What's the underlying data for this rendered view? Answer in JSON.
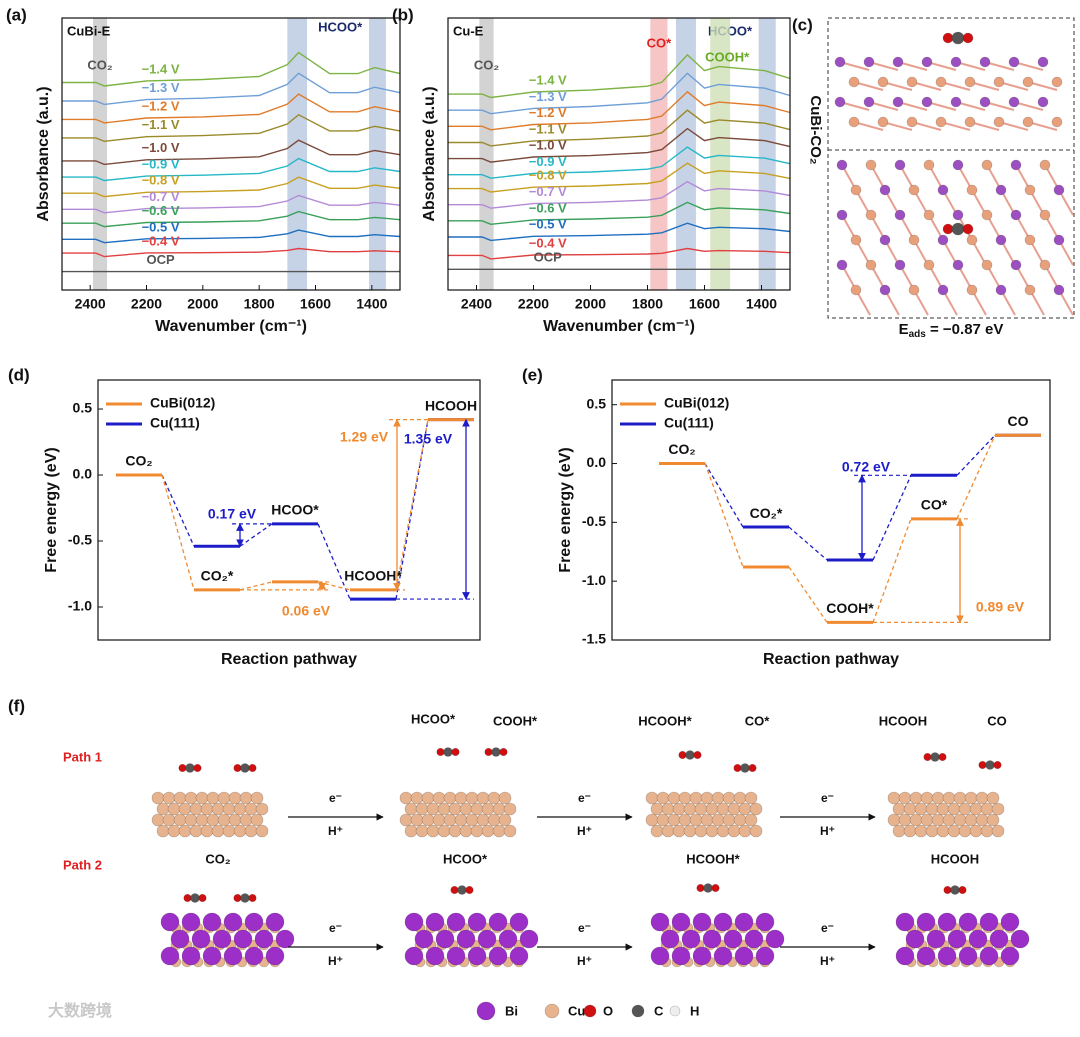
{
  "chart_data": [
    {
      "type": "line",
      "tag": "(a)",
      "label": "CuBi-E",
      "xlabel": "Wavenumber (cm⁻¹)",
      "ylabel": "Absorbance (a.u.)",
      "x": [
        2500,
        2380,
        2350,
        2200,
        2000,
        1800,
        1700,
        1660,
        1550,
        1450,
        1390,
        1300
      ],
      "xlim": [
        2500,
        1300
      ],
      "ylim": [
        0,
        11.8
      ],
      "xticks": [
        2400,
        2200,
        2000,
        1800,
        1600,
        1400
      ],
      "bands": [
        {
          "from": 2390,
          "to": 2340,
          "color": "#c8c8c8",
          "label": "CO₂",
          "label_color": "#555555"
        },
        {
          "from": 1700,
          "to": 1630,
          "color": "#b8c8e0",
          "label": "HCOO*",
          "label_color": "#1a2a6a"
        },
        {
          "from": 1410,
          "to": 1350,
          "color": "#b8c8e0"
        }
      ],
      "series": [
        {
          "name": "−1.4 V",
          "color": "#7cb342",
          "values": [
            9.0,
            9.0,
            8.85,
            9.07,
            9.13,
            9.26,
            9.78,
            10.3,
            9.39,
            9.39,
            9.65,
            9.39
          ]
        },
        {
          "name": "−1.3 V",
          "color": "#6f9fd8",
          "values": [
            8.2,
            8.2,
            8.05,
            8.26,
            8.32,
            8.44,
            8.92,
            9.4,
            8.56,
            8.56,
            8.8,
            8.56
          ]
        },
        {
          "name": "−1.2 V",
          "color": "#e07b2a",
          "values": [
            7.4,
            7.4,
            7.25,
            7.46,
            7.51,
            7.62,
            8.06,
            8.5,
            7.73,
            7.73,
            7.95,
            7.73
          ]
        },
        {
          "name": "−1.1 V",
          "color": "#9a8a2a",
          "values": [
            6.6,
            6.6,
            6.45,
            6.65,
            6.7,
            6.8,
            7.2,
            7.6,
            6.9,
            6.9,
            7.1,
            6.9
          ]
        },
        {
          "name": "−1.0 V",
          "color": "#7b4a3a",
          "values": [
            5.6,
            5.6,
            5.45,
            5.65,
            5.69,
            5.78,
            6.14,
            6.5,
            5.87,
            5.87,
            6.05,
            5.87
          ]
        },
        {
          "name": "−0.9 V",
          "color": "#26b8c8",
          "values": [
            4.9,
            4.9,
            4.75,
            4.94,
            4.98,
            5.06,
            5.38,
            5.7,
            5.14,
            5.14,
            5.3,
            5.14
          ]
        },
        {
          "name": "−0.8 V",
          "color": "#c8a020",
          "values": [
            4.2,
            4.2,
            4.05,
            4.24,
            4.27,
            4.34,
            4.62,
            4.9,
            4.41,
            4.41,
            4.55,
            4.41
          ]
        },
        {
          "name": "−0.7 V",
          "color": "#b48ad8",
          "values": [
            3.5,
            3.5,
            3.35,
            3.53,
            3.56,
            3.62,
            3.86,
            4.1,
            3.68,
            3.68,
            3.8,
            3.68
          ]
        },
        {
          "name": "−0.6 V",
          "color": "#3aa05a",
          "values": [
            2.9,
            2.9,
            2.75,
            2.93,
            2.95,
            3.0,
            3.2,
            3.4,
            3.05,
            3.05,
            3.15,
            3.05
          ]
        },
        {
          "name": "−0.5 V",
          "color": "#1f6fc0",
          "values": [
            2.2,
            2.2,
            2.05,
            2.22,
            2.24,
            2.28,
            2.44,
            2.6,
            2.32,
            2.32,
            2.4,
            2.32
          ]
        },
        {
          "name": "−0.4 V",
          "color": "#e04040",
          "values": [
            1.6,
            1.6,
            1.45,
            1.61,
            1.62,
            1.64,
            1.72,
            1.8,
            1.66,
            1.66,
            1.7,
            1.66
          ]
        },
        {
          "name": "OCP",
          "color": "#555555",
          "values": [
            0.8,
            0.8,
            0.8,
            0.8,
            0.8,
            0.8,
            0.8,
            0.8,
            0.8,
            0.8,
            0.8,
            0.8
          ]
        }
      ]
    },
    {
      "type": "line",
      "tag": "(b)",
      "label": "Cu-E",
      "xlabel": "Wavenumber (cm⁻¹)",
      "ylabel": "Absorbance (a.u.)",
      "x": [
        2500,
        2380,
        2350,
        2200,
        2000,
        1800,
        1750,
        1660,
        1600,
        1550,
        1390,
        1300
      ],
      "xlim": [
        2500,
        1300
      ],
      "ylim": [
        0,
        11.8
      ],
      "xticks": [
        2400,
        2200,
        2000,
        1800,
        1600,
        1400
      ],
      "bands": [
        {
          "from": 2390,
          "to": 2340,
          "color": "#c8c8c8",
          "label": "CO₂",
          "label_color": "#555555"
        },
        {
          "from": 1790,
          "to": 1730,
          "color": "#f4b8b8",
          "label": "CO*",
          "label_color": "#e02020"
        },
        {
          "from": 1700,
          "to": 1630,
          "color": "#b8c8e0",
          "label": "HCOO*",
          "label_color": "#1a2a6a"
        },
        {
          "from": 1580,
          "to": 1510,
          "color": "#cfe0b8",
          "label": "COOH*",
          "label_color": "#66aa22"
        },
        {
          "from": 1410,
          "to": 1350,
          "color": "#b8c8e0"
        }
      ],
      "series": [
        {
          "name": "−1.4 V",
          "color": "#7cb342",
          "values": [
            8.5,
            8.5,
            8.35,
            8.59,
            8.67,
            8.84,
            9.01,
            10.2,
            9.52,
            9.69,
            9.52,
            9.18
          ]
        },
        {
          "name": "−1.3 V",
          "color": "#6f9fd8",
          "values": [
            7.8,
            7.8,
            7.65,
            7.88,
            7.96,
            8.12,
            8.28,
            9.4,
            8.76,
            8.92,
            8.76,
            8.44
          ]
        },
        {
          "name": "−1.2 V",
          "color": "#e07b2a",
          "values": [
            7.1,
            7.1,
            6.95,
            7.18,
            7.25,
            7.4,
            7.55,
            8.6,
            8.0,
            8.15,
            8.0,
            7.7
          ]
        },
        {
          "name": "−1.1 V",
          "color": "#9a8a2a",
          "values": [
            6.4,
            6.4,
            6.25,
            6.47,
            6.54,
            6.68,
            6.82,
            7.8,
            7.24,
            7.38,
            7.24,
            6.96
          ]
        },
        {
          "name": "−1.0 V",
          "color": "#7b4a3a",
          "values": [
            5.7,
            5.7,
            5.55,
            5.77,
            5.83,
            5.96,
            6.09,
            7.0,
            6.48,
            6.61,
            6.48,
            6.22
          ]
        },
        {
          "name": "−0.9 V",
          "color": "#26b8c8",
          "values": [
            5.0,
            5.0,
            4.85,
            5.06,
            5.12,
            5.24,
            5.36,
            6.2,
            5.72,
            5.84,
            5.72,
            5.48
          ]
        },
        {
          "name": "−0.8 V",
          "color": "#c8a020",
          "values": [
            4.4,
            4.4,
            4.25,
            4.46,
            4.51,
            4.62,
            4.73,
            5.5,
            5.06,
            5.17,
            5.06,
            4.84
          ]
        },
        {
          "name": "−0.7 V",
          "color": "#b48ad8",
          "values": [
            3.7,
            3.7,
            3.55,
            3.75,
            3.8,
            3.9,
            4.0,
            4.7,
            4.3,
            4.4,
            4.3,
            4.1
          ]
        },
        {
          "name": "−0.6 V",
          "color": "#3aa05a",
          "values": [
            3.0,
            3.0,
            2.85,
            3.04,
            3.08,
            3.16,
            3.24,
            3.8,
            3.48,
            3.56,
            3.48,
            3.32
          ]
        },
        {
          "name": "−0.5 V",
          "color": "#1f6fc0",
          "values": [
            2.3,
            2.3,
            2.15,
            2.33,
            2.36,
            2.42,
            2.48,
            2.9,
            2.66,
            2.72,
            2.66,
            2.54
          ]
        },
        {
          "name": "−0.4 V",
          "color": "#e04040",
          "values": [
            1.5,
            1.5,
            1.35,
            1.52,
            1.53,
            1.56,
            1.59,
            1.8,
            1.68,
            1.71,
            1.68,
            1.62
          ]
        },
        {
          "name": "OCP",
          "color": "#555555",
          "values": [
            0.9,
            0.9,
            0.9,
            0.9,
            0.9,
            0.9,
            0.9,
            0.9,
            0.9,
            0.9,
            0.9,
            0.9
          ]
        }
      ]
    },
    {
      "type": "energy",
      "tag": "(d)",
      "xlabel": "Reaction pathway",
      "ylabel": "Free energy (eV)",
      "legend": "upper left",
      "categories": [
        "CO₂",
        "CO₂*",
        "HCOO*",
        "HCOOH*",
        "HCOOH"
      ],
      "ylim": [
        -1.25,
        0.72
      ],
      "yticks": [
        0.5,
        {
          "value": 0,
          "label": "0.0"
        },
        -0.5,
        {
          "value": -1,
          "label": "-1.0"
        }
      ],
      "series": [
        {
          "name": "CuBi(012)",
          "color": "#f08a30",
          "values": [
            0,
            -0.87,
            -0.81,
            -0.87,
            0.42
          ]
        },
        {
          "name": "Cu(111)",
          "color": "#1c1cc8",
          "values": [
            0,
            -0.54,
            -0.37,
            -0.94,
            0.42
          ]
        }
      ],
      "annotations": [
        {
          "text": "0.17 eV",
          "color": "#1c1cc8"
        },
        {
          "text": "0.06 eV",
          "color": "#f08a30"
        },
        {
          "text": "1.29 eV",
          "color": "#f08a30"
        },
        {
          "text": "1.35 eV",
          "color": "#1c1cc8"
        }
      ]
    },
    {
      "type": "energy",
      "tag": "(e)",
      "xlabel": "Reaction pathway",
      "ylabel": "Free energy (eV)",
      "legend": "upper left",
      "categories": [
        "CO₂",
        "CO₂*",
        "COOH*",
        "CO*",
        "CO"
      ],
      "ylim": [
        -1.5,
        0.71
      ],
      "yticks": [
        0.5,
        {
          "value": 0,
          "label": "0.0"
        },
        -0.5,
        {
          "value": -1,
          "label": "-1.0"
        },
        {
          "value": -1.5,
          "label": "-1.5"
        }
      ],
      "series": [
        {
          "name": "CuBi(012)",
          "color": "#f08a30",
          "values": [
            0,
            -0.88,
            -1.35,
            -0.47,
            0.24
          ]
        },
        {
          "name": "Cu(111)",
          "color": "#1c1cc8",
          "values": [
            0,
            -0.54,
            -0.82,
            -0.1,
            0.24
          ]
        }
      ],
      "annotations": [
        {
          "text": "0.72 eV",
          "color": "#1c1cc8"
        },
        {
          "text": "0.89 eV",
          "color": "#f08a30"
        }
      ]
    }
  ],
  "panel_c": {
    "tag": "(c)",
    "label": "CuBi-CO₂",
    "energy_symbol": "E",
    "energy_subscript": "ads",
    "energy_text": " = −0.87 eV"
  },
  "panel_f": {
    "tag": "(f)",
    "paths": [
      "Path 1",
      "Path 2"
    ],
    "row1_labels": [
      "HCOO*",
      "COOH*",
      "HCOOH*",
      "CO*",
      "HCOOH",
      "CO"
    ],
    "row2_labels": [
      "CO₂",
      "HCOO*",
      "HCOOH*",
      "HCOOH"
    ],
    "arrows": [
      {
        "top": "e⁻",
        "bottom": "H⁺"
      },
      {
        "top": "e⁻",
        "bottom": "H⁺"
      },
      {
        "top": "e⁻",
        "bottom": "H⁺"
      },
      {
        "top": "e⁻",
        "bottom": "H⁺"
      },
      {
        "top": "e⁻",
        "bottom": "H⁺"
      },
      {
        "top": "e⁻",
        "bottom": "H⁺"
      }
    ],
    "legend": [
      "Bi",
      "Cu",
      "O",
      "C",
      "H"
    ]
  },
  "watermark": "大数跨境"
}
